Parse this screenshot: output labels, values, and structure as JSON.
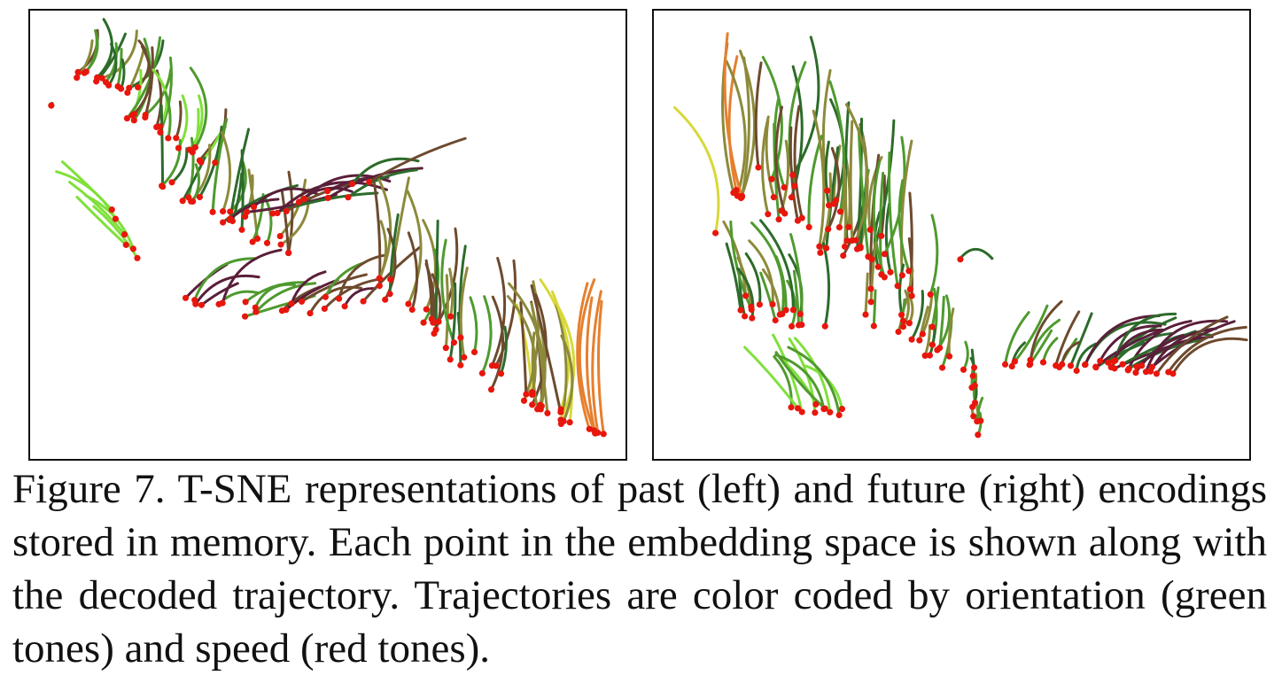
{
  "figure": {
    "label": "Figure 7.",
    "caption_text": "T-SNE representations of past (left) and future (right) encodings stored in memory. Each point in the embedding space is shown along with the decoded trajectory. Trajectories are color coded by orientation (green tones) and speed (red tones).",
    "colors": {
      "point": "#e8160c",
      "green_light": "#7fe03a",
      "green_mid": "#4f9a2e",
      "green_dark": "#2c6b2a",
      "olive": "#8c8a3a",
      "brown": "#6d4a2e",
      "maroon": "#5a1f3a",
      "orange": "#e67f2e",
      "yellow": "#d8d83a",
      "frame": "#111111"
    },
    "panels": [
      {
        "id": "past",
        "description_in_caption": "left"
      },
      {
        "id": "future",
        "description_in_caption": "right"
      }
    ]
  }
}
